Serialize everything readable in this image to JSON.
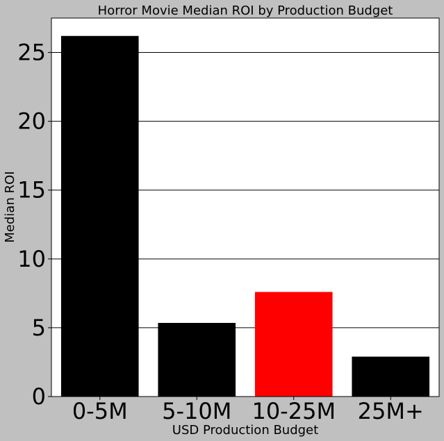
{
  "chart_data": {
    "type": "bar",
    "title": "Horror Movie Median ROI by Production Budget",
    "xlabel": "USD Production Budget",
    "ylabel": "Median ROI",
    "categories": [
      "0-5M",
      "5-10M",
      "10-25M",
      "25M+"
    ],
    "values": [
      26.2,
      5.35,
      7.6,
      2.9
    ],
    "bar_colors": [
      "#000000",
      "#000000",
      "#ff0000",
      "#000000"
    ],
    "ylim": [
      0,
      27.5
    ],
    "yticks": [
      0,
      5,
      10,
      15,
      20,
      25
    ],
    "grid": "horizontal",
    "background": "#c0c0c0",
    "plot_background": "#ffffff"
  }
}
